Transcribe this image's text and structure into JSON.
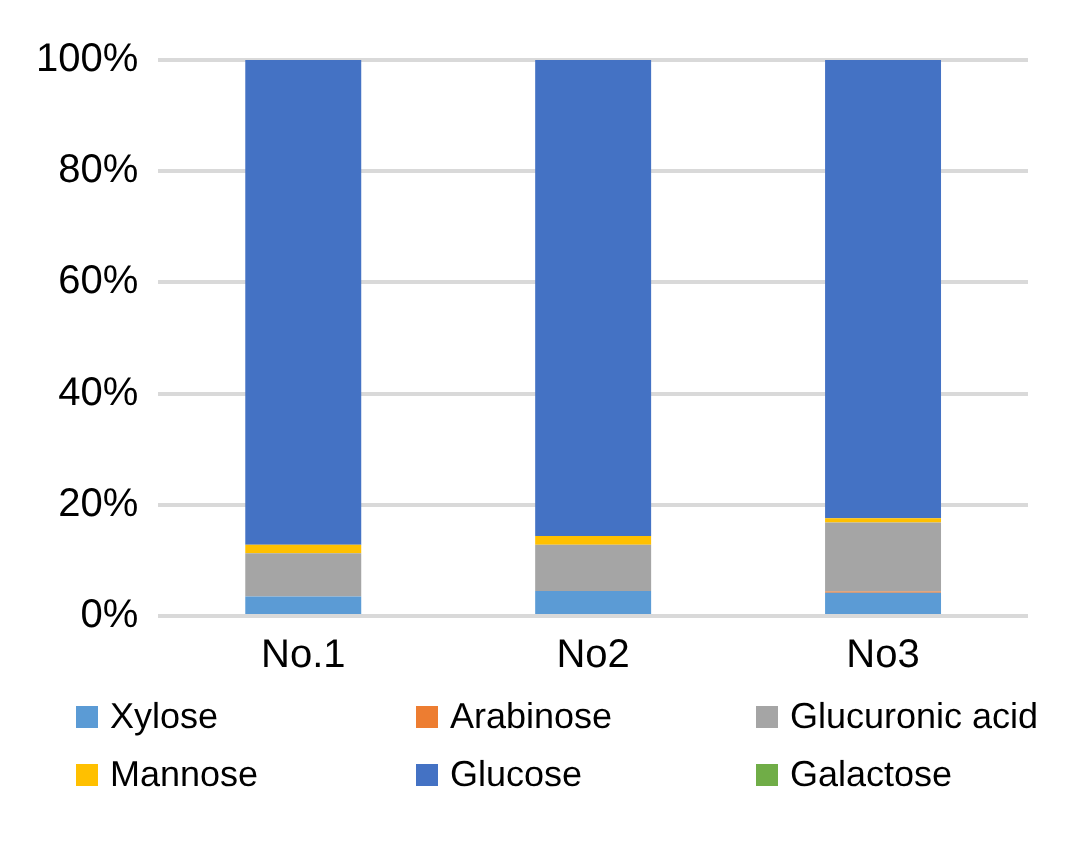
{
  "chart_data": {
    "type": "bar",
    "stacked": true,
    "categories": [
      "No.1",
      "No2",
      "No3"
    ],
    "series": [
      {
        "name": "Xylose",
        "color": "#5b9bd5",
        "values": [
          3.5,
          4.5,
          4.2
        ]
      },
      {
        "name": "Arabinose",
        "color": "#ed7d31",
        "values": [
          0,
          0,
          0.2
        ]
      },
      {
        "name": "Glucuronic acid",
        "color": "#a5a5a5",
        "values": [
          7.8,
          8.3,
          12.4
        ]
      },
      {
        "name": "Mannose",
        "color": "#ffc000",
        "values": [
          1.5,
          1.6,
          0.8
        ]
      },
      {
        "name": "Glucose",
        "color": "#4472c4",
        "values": [
          87.2,
          85.6,
          82.4
        ]
      },
      {
        "name": "Galactose",
        "color": "#70ad47",
        "values": [
          0,
          0,
          0
        ]
      }
    ],
    "ylim": [
      0,
      100
    ],
    "yticks": [
      {
        "value": 0,
        "label": "0%"
      },
      {
        "value": 20,
        "label": "20%"
      },
      {
        "value": 40,
        "label": "40%"
      },
      {
        "value": 60,
        "label": "60%"
      },
      {
        "value": 80,
        "label": "80%"
      },
      {
        "value": 100,
        "label": "100%"
      }
    ],
    "grid": "y",
    "legend": "bottom"
  }
}
